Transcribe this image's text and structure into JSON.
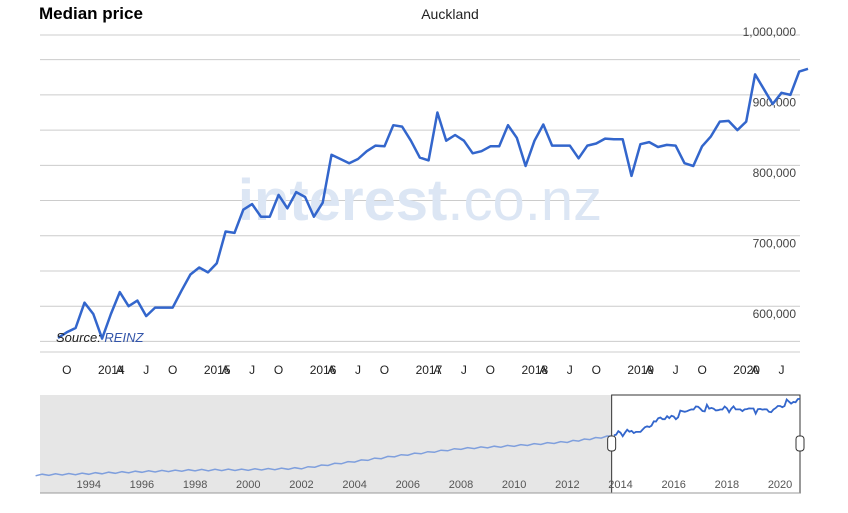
{
  "header": {
    "title": "Median price",
    "region": "Auckland"
  },
  "watermark": {
    "brand": "interest",
    "suffix": ".co.nz"
  },
  "source": {
    "prefix": "Source: ",
    "name": "REINZ"
  },
  "colors": {
    "line": "#3366cc",
    "grid": "#cccccc",
    "navigator_bg": "#e6e6e6",
    "watermark": "#dce6f4",
    "axis_text": "#444444"
  },
  "chart_data": {
    "type": "line",
    "title": "Median price",
    "subtitle": "Auckland",
    "ylabel": "",
    "xlabel": "",
    "grid": true,
    "ylim": [
      600000,
      1000000
    ],
    "y_ticks": [
      "600,000",
      "700,000",
      "800,000",
      "900,000",
      "1,000,000"
    ],
    "x_ticks": [
      "O",
      "2014",
      "A",
      "J",
      "O",
      "2015",
      "A",
      "J",
      "O",
      "2016",
      "A",
      "J",
      "O",
      "2017",
      "A",
      "J",
      "O",
      "2018",
      "A",
      "J",
      "O",
      "2019",
      "A",
      "J",
      "O",
      "2020",
      "A",
      "J"
    ],
    "series": [
      {
        "x": [
          "2013-09",
          "2013-10",
          "2013-11",
          "2013-12",
          "2014-01",
          "2014-02",
          "2014-03",
          "2014-04",
          "2014-05",
          "2014-06",
          "2014-07",
          "2014-08",
          "2014-09",
          "2014-10",
          "2014-11",
          "2014-12",
          "2015-01",
          "2015-02",
          "2015-03",
          "2015-04",
          "2015-05",
          "2015-06",
          "2015-07",
          "2015-08",
          "2015-09",
          "2015-10",
          "2015-11",
          "2015-12",
          "2016-01",
          "2016-02",
          "2016-03",
          "2016-04",
          "2016-05",
          "2016-06",
          "2016-07",
          "2016-08",
          "2016-09",
          "2016-10",
          "2016-11",
          "2016-12",
          "2017-01",
          "2017-02",
          "2017-03",
          "2017-04",
          "2017-05",
          "2017-06",
          "2017-07",
          "2017-08",
          "2017-09",
          "2017-10",
          "2017-11",
          "2017-12",
          "2018-01",
          "2018-02",
          "2018-03",
          "2018-04",
          "2018-05",
          "2018-06",
          "2018-07",
          "2018-08",
          "2018-09",
          "2018-10",
          "2018-11",
          "2018-12",
          "2019-01",
          "2019-02",
          "2019-03",
          "2019-04",
          "2019-05",
          "2019-06",
          "2019-07",
          "2019-08",
          "2019-09",
          "2019-10",
          "2019-11",
          "2019-12",
          "2020-01",
          "2020-02",
          "2020-03",
          "2020-04",
          "2020-05",
          "2020-06",
          "2020-07",
          "2020-08",
          "2020-09",
          "2020-10"
        ],
        "values": [
          580000,
          588000,
          594000,
          630000,
          614000,
          579000,
          614000,
          645000,
          625000,
          633000,
          611000,
          623000,
          623000,
          623000,
          647000,
          670000,
          680000,
          673000,
          686000,
          731000,
          729000,
          762000,
          770000,
          752000,
          752000,
          783000,
          764000,
          787000,
          780000,
          752000,
          772000,
          840000,
          834000,
          828000,
          834000,
          845000,
          853000,
          852000,
          882000,
          880000,
          860000,
          836000,
          832000,
          900000,
          860000,
          868000,
          860000,
          842000,
          845000,
          852000,
          852000,
          882000,
          864000,
          824000,
          860000,
          883000,
          853000,
          853000,
          853000,
          835000,
          853000,
          856000,
          863000,
          862000,
          862000,
          810000,
          855000,
          858000,
          851000,
          854000,
          853000,
          828000,
          824000,
          852000,
          866000,
          887000,
          888000,
          875000,
          887000,
          954000,
          933000,
          912000,
          928000,
          925000,
          958000,
          962000
        ]
      }
    ],
    "navigator": {
      "x_ticks": [
        "1994",
        "1996",
        "1998",
        "2000",
        "2002",
        "2004",
        "2006",
        "2008",
        "2010",
        "2012",
        "2014",
        "2016",
        "2018",
        "2020"
      ],
      "range_start": "2013-09",
      "range_end": "2020-10"
    }
  }
}
